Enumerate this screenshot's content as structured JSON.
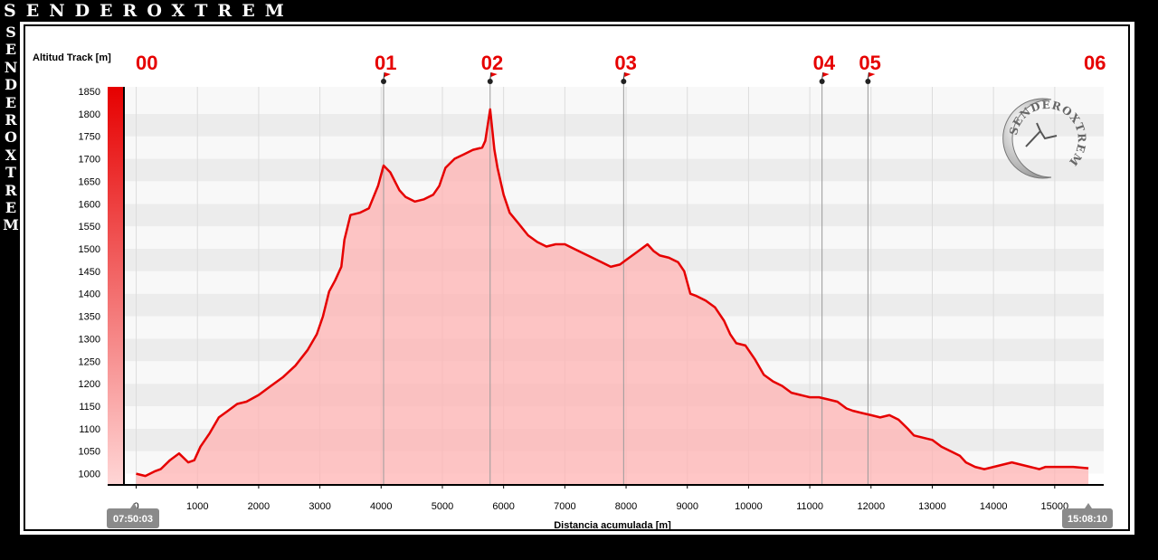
{
  "brand": {
    "name": "SENDEROXTREM",
    "logo_text": "SENDEROXTREM"
  },
  "colors": {
    "line": "#e60000",
    "fill": "#ffb3b3",
    "waypoint": "#e60000",
    "time_badge": "#8a8a8a"
  },
  "chart_data": {
    "type": "area",
    "ylabel": "Altitud Track [m]",
    "xlabel": "Distancia acumulada [m]",
    "xlim": [
      -200,
      15800
    ],
    "ylim": [
      975,
      1860
    ],
    "x_ticks": [
      0,
      1000,
      2000,
      3000,
      4000,
      5000,
      6000,
      7000,
      8000,
      9000,
      10000,
      11000,
      12000,
      13000,
      14000,
      15000
    ],
    "y_ticks": [
      1000,
      1050,
      1100,
      1150,
      1200,
      1250,
      1300,
      1350,
      1400,
      1450,
      1500,
      1550,
      1600,
      1650,
      1700,
      1750,
      1800,
      1850
    ],
    "grid": true,
    "start_time": "07:50:03",
    "end_time": "15:08:10",
    "waypoints": [
      {
        "label": "00",
        "x": 0
      },
      {
        "label": "01",
        "x": 4040
      },
      {
        "label": "02",
        "x": 5780
      },
      {
        "label": "03",
        "x": 7960
      },
      {
        "label": "04",
        "x": 11200
      },
      {
        "label": "05",
        "x": 11950
      },
      {
        "label": "06",
        "x": 15550
      }
    ],
    "series": [
      {
        "x": [
          0,
          150,
          300,
          400,
          550,
          700,
          850,
          950,
          1050,
          1200,
          1350,
          1500,
          1650,
          1800,
          2000,
          2200,
          2400,
          2600,
          2800,
          2950,
          3050,
          3150,
          3250,
          3350,
          3400,
          3500,
          3650,
          3800,
          3950,
          4040,
          4150,
          4300,
          4400,
          4550,
          4700,
          4850,
          4950,
          5050,
          5200,
          5350,
          5500,
          5650,
          5700,
          5780,
          5850,
          5900,
          6000,
          6100,
          6250,
          6400,
          6550,
          6700,
          6850,
          7000,
          7150,
          7300,
          7450,
          7600,
          7750,
          7900,
          8000,
          8150,
          8250,
          8350,
          8450,
          8550,
          8700,
          8850,
          8950,
          9050,
          9150,
          9300,
          9450,
          9600,
          9700,
          9800,
          9950,
          10100,
          10250,
          10400,
          10550,
          10700,
          10850,
          11000,
          11150,
          11300,
          11450,
          11600,
          11700,
          11850,
          12000,
          12150,
          12300,
          12450,
          12600,
          12700,
          12850,
          13000,
          13150,
          13300,
          13450,
          13550,
          13700,
          13850,
          14000,
          14150,
          14300,
          14450,
          14600,
          14750,
          14850,
          15000,
          15300,
          15550
        ],
        "y": [
          1000,
          995,
          1005,
          1010,
          1030,
          1045,
          1025,
          1030,
          1060,
          1090,
          1125,
          1140,
          1155,
          1160,
          1175,
          1195,
          1215,
          1240,
          1275,
          1310,
          1350,
          1405,
          1430,
          1460,
          1520,
          1575,
          1580,
          1590,
          1640,
          1685,
          1670,
          1630,
          1615,
          1605,
          1610,
          1620,
          1640,
          1680,
          1700,
          1710,
          1720,
          1725,
          1740,
          1810,
          1720,
          1680,
          1620,
          1580,
          1555,
          1530,
          1515,
          1505,
          1510,
          1510,
          1500,
          1490,
          1480,
          1470,
          1460,
          1465,
          1475,
          1490,
          1500,
          1510,
          1495,
          1485,
          1480,
          1470,
          1450,
          1400,
          1395,
          1385,
          1370,
          1340,
          1310,
          1290,
          1285,
          1255,
          1220,
          1205,
          1195,
          1180,
          1175,
          1170,
          1170,
          1165,
          1160,
          1145,
          1140,
          1135,
          1130,
          1125,
          1130,
          1120,
          1100,
          1085,
          1080,
          1075,
          1060,
          1050,
          1040,
          1025,
          1015,
          1010,
          1015,
          1020,
          1025,
          1020,
          1015,
          1010,
          1015,
          1015,
          1015,
          1012
        ]
      }
    ]
  }
}
